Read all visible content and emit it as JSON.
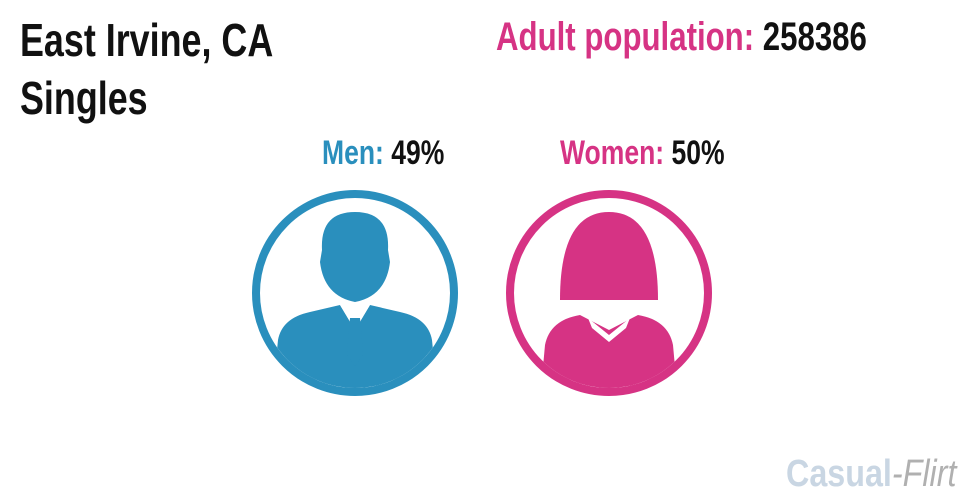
{
  "header": {
    "city": "East Irvine, CA",
    "subtitle": "Singles"
  },
  "population": {
    "label": "Adult population:",
    "value": "258386"
  },
  "men": {
    "label": "Men:",
    "value": "49%"
  },
  "women": {
    "label": "Women:",
    "value": "50%"
  },
  "logo": {
    "first": "Casual",
    "second": "-Flirt"
  }
}
